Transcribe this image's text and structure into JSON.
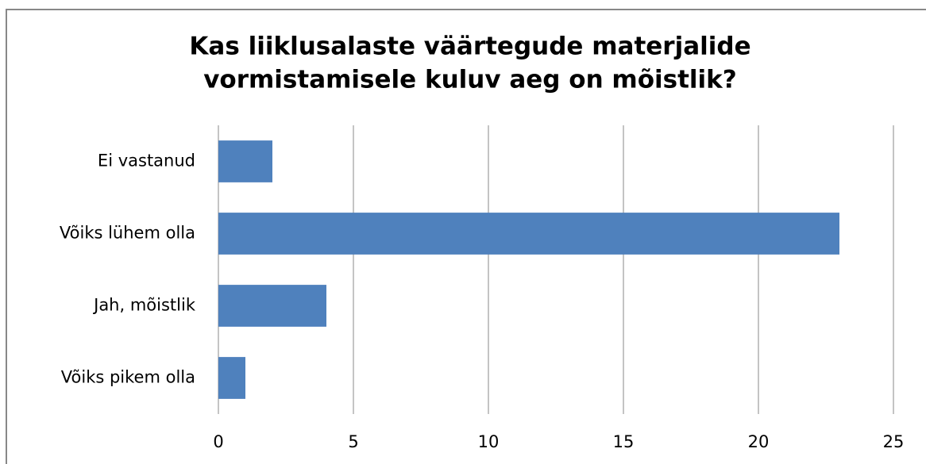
{
  "chart_data": {
    "type": "bar",
    "orientation": "horizontal",
    "title": [
      "Kas liiklusalaste väärtegude materjalide",
      "vormistamisele kuluv aeg on mõistlik?"
    ],
    "categories": [
      "Ei vastanud",
      "Võiks lühem olla",
      "Jah, mõistlik",
      "Võiks pikem olla"
    ],
    "values": [
      2,
      23,
      4,
      1
    ],
    "color": "#4f81bd",
    "xlim": [
      0,
      25
    ],
    "xticks": [
      0,
      5,
      10,
      15,
      20,
      25
    ],
    "grid": true
  }
}
